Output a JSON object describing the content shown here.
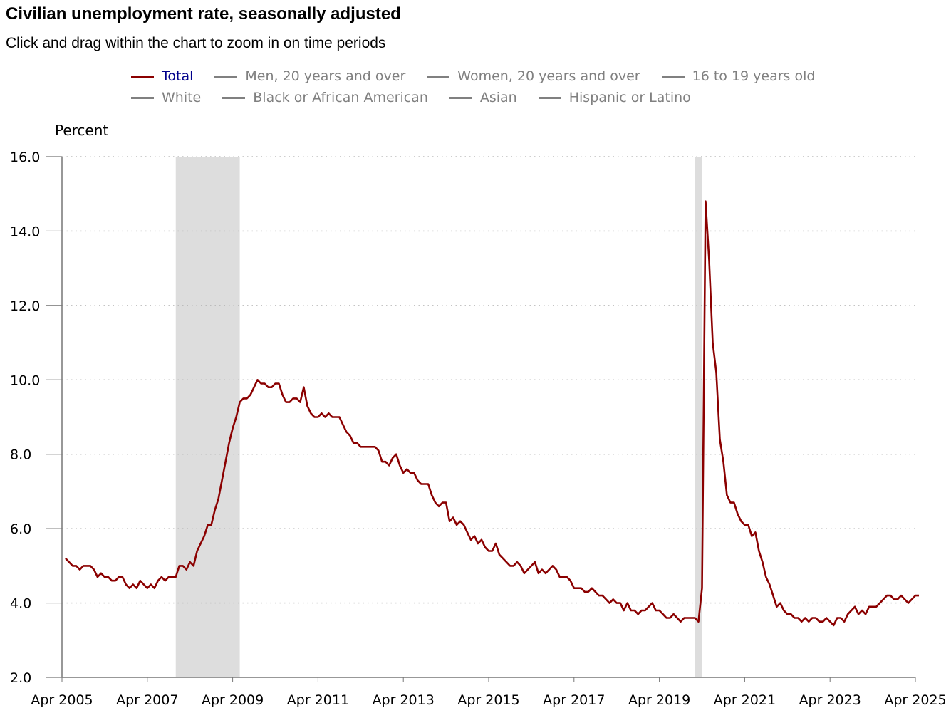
{
  "header": {
    "title": "Civilian unemployment rate, seasonally adjusted",
    "subtitle": "Click and drag within the chart to zoom in on time periods"
  },
  "legend": {
    "rows": [
      [
        {
          "label": "Total",
          "active": true
        },
        {
          "label": "Men, 20 years and over",
          "active": false
        },
        {
          "label": "Women, 20 years and over",
          "active": false
        },
        {
          "label": "16 to 19 years old",
          "active": false
        }
      ],
      [
        {
          "label": "White",
          "active": false
        },
        {
          "label": "Black or African American",
          "active": false
        },
        {
          "label": "Asian",
          "active": false
        },
        {
          "label": "Hispanic or Latino",
          "active": false
        }
      ]
    ]
  },
  "colors": {
    "total_line": "#8b0000",
    "active_legend_text": "#00008b",
    "inactive_legend": "#808080",
    "recession_band": "#dddddd",
    "grid": "#b0b0b0"
  },
  "chart_data": {
    "type": "line",
    "ylabel": "Percent",
    "xlabel": "",
    "ylim": [
      2.0,
      16.0
    ],
    "yticks": [
      "2.0",
      "4.0",
      "6.0",
      "8.0",
      "10.0",
      "12.0",
      "14.0",
      "16.0"
    ],
    "xticks": [
      "Apr 2005",
      "Apr 2007",
      "Apr 2009",
      "Apr 2011",
      "Apr 2013",
      "Apr 2015",
      "Apr 2017",
      "Apr 2019",
      "Apr 2021",
      "Apr 2023",
      "Apr 2025"
    ],
    "xrange": [
      "2005-04",
      "2025-04"
    ],
    "grid": "horizontal dotted",
    "recessions": [
      {
        "start": "2007-12",
        "end": "2009-06"
      },
      {
        "start": "2020-02",
        "end": "2020-04"
      }
    ],
    "series": [
      {
        "name": "Total",
        "start": "2005-05",
        "frequency": "monthly",
        "values": [
          5.2,
          5.1,
          5.0,
          5.0,
          4.9,
          5.0,
          5.0,
          5.0,
          4.9,
          4.7,
          4.8,
          4.7,
          4.7,
          4.6,
          4.6,
          4.7,
          4.7,
          4.5,
          4.4,
          4.5,
          4.4,
          4.6,
          4.5,
          4.4,
          4.5,
          4.4,
          4.6,
          4.7,
          4.6,
          4.7,
          4.7,
          4.7,
          5.0,
          5.0,
          4.9,
          5.1,
          5.0,
          5.4,
          5.6,
          5.8,
          6.1,
          6.1,
          6.5,
          6.8,
          7.3,
          7.8,
          8.3,
          8.7,
          9.0,
          9.4,
          9.5,
          9.5,
          9.6,
          9.8,
          10.0,
          9.9,
          9.9,
          9.8,
          9.8,
          9.9,
          9.9,
          9.6,
          9.4,
          9.4,
          9.5,
          9.5,
          9.4,
          9.8,
          9.3,
          9.1,
          9.0,
          9.0,
          9.1,
          9.0,
          9.1,
          9.0,
          9.0,
          9.0,
          8.8,
          8.6,
          8.5,
          8.3,
          8.3,
          8.2,
          8.2,
          8.2,
          8.2,
          8.2,
          8.1,
          7.8,
          7.8,
          7.7,
          7.9,
          8.0,
          7.7,
          7.5,
          7.6,
          7.5,
          7.5,
          7.3,
          7.2,
          7.2,
          7.2,
          6.9,
          6.7,
          6.6,
          6.7,
          6.7,
          6.2,
          6.3,
          6.1,
          6.2,
          6.1,
          5.9,
          5.7,
          5.8,
          5.6,
          5.7,
          5.5,
          5.4,
          5.4,
          5.6,
          5.3,
          5.2,
          5.1,
          5.0,
          5.0,
          5.1,
          5.0,
          4.8,
          4.9,
          5.0,
          5.1,
          4.8,
          4.9,
          4.8,
          4.9,
          5.0,
          4.9,
          4.7,
          4.7,
          4.7,
          4.6,
          4.4,
          4.4,
          4.4,
          4.3,
          4.3,
          4.4,
          4.3,
          4.2,
          4.2,
          4.1,
          4.0,
          4.1,
          4.0,
          4.0,
          3.8,
          4.0,
          3.8,
          3.8,
          3.7,
          3.8,
          3.8,
          3.9,
          4.0,
          3.8,
          3.8,
          3.7,
          3.6,
          3.6,
          3.7,
          3.6,
          3.5,
          3.6,
          3.6,
          3.6,
          3.6,
          3.5,
          4.4,
          14.8,
          13.2,
          11.0,
          10.2,
          8.4,
          7.8,
          6.9,
          6.7,
          6.7,
          6.4,
          6.2,
          6.1,
          6.1,
          5.8,
          5.9,
          5.4,
          5.1,
          4.7,
          4.5,
          4.2,
          3.9,
          4.0,
          3.8,
          3.7,
          3.7,
          3.6,
          3.6,
          3.5,
          3.6,
          3.5,
          3.6,
          3.6,
          3.5,
          3.5,
          3.6,
          3.5,
          3.4,
          3.6,
          3.6,
          3.5,
          3.7,
          3.8,
          3.9,
          3.7,
          3.8,
          3.7,
          3.9,
          3.9,
          3.9,
          4.0,
          4.1,
          4.2,
          4.2,
          4.1,
          4.1,
          4.2,
          4.1,
          4.0,
          4.1,
          4.2,
          4.2
        ]
      }
    ]
  }
}
